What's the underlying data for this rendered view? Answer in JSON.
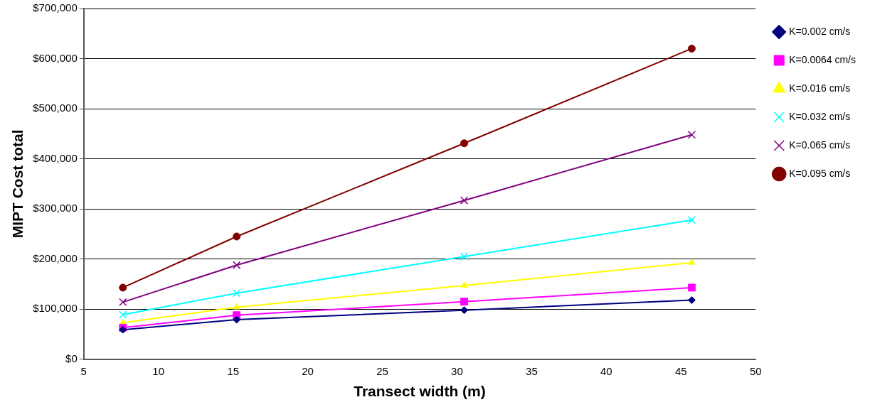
{
  "chart_data": {
    "type": "line",
    "xlabel": "Transect width (m)",
    "ylabel": "MIPT Cost total",
    "x": [
      7.62,
      15.24,
      30.48,
      45.72
    ],
    "series": [
      {
        "name": "K=0.002 cm/s",
        "color": "#000080",
        "marker": "diamond",
        "values": [
          59000,
          79000,
          98000,
          118000
        ]
      },
      {
        "name": "K=0.0064 cm/s",
        "color": "#ff00ff",
        "marker": "square",
        "values": [
          63000,
          88000,
          115000,
          143000
        ]
      },
      {
        "name": "K=0.016 cm/s",
        "color": "#ffff00",
        "marker": "triangle",
        "values": [
          73000,
          104000,
          147000,
          193000
        ]
      },
      {
        "name": "K=0.032 cm/s",
        "color": "#00ffff",
        "marker": "cross",
        "values": [
          89000,
          132000,
          205000,
          278000
        ]
      },
      {
        "name": "K=0.065 cm/s",
        "color": "#800080",
        "marker": "cross",
        "values": [
          114000,
          188000,
          317000,
          448000
        ]
      },
      {
        "name": "K=0.095 cm/s",
        "color": "#800000",
        "marker": "circle",
        "values": [
          143000,
          245000,
          431000,
          620000
        ]
      }
    ],
    "xlim": [
      5,
      50
    ],
    "xticks": [
      5,
      10,
      15,
      20,
      25,
      30,
      35,
      40,
      45,
      50
    ],
    "ylim": [
      0,
      700000
    ],
    "yticks": [
      {
        "value": 0,
        "label": "$0"
      },
      {
        "value": 100000,
        "label": "$100,000"
      },
      {
        "value": 200000,
        "label": "$200,000"
      },
      {
        "value": 300000,
        "label": "$300,000"
      },
      {
        "value": 400000,
        "label": "$400,000"
      },
      {
        "value": 500000,
        "label": "$500,000"
      },
      {
        "value": 600000,
        "label": "$600,000"
      },
      {
        "value": 700000,
        "label": "$700,000"
      }
    ],
    "grid": "y",
    "legend": "right",
    "line_style": "solid"
  }
}
